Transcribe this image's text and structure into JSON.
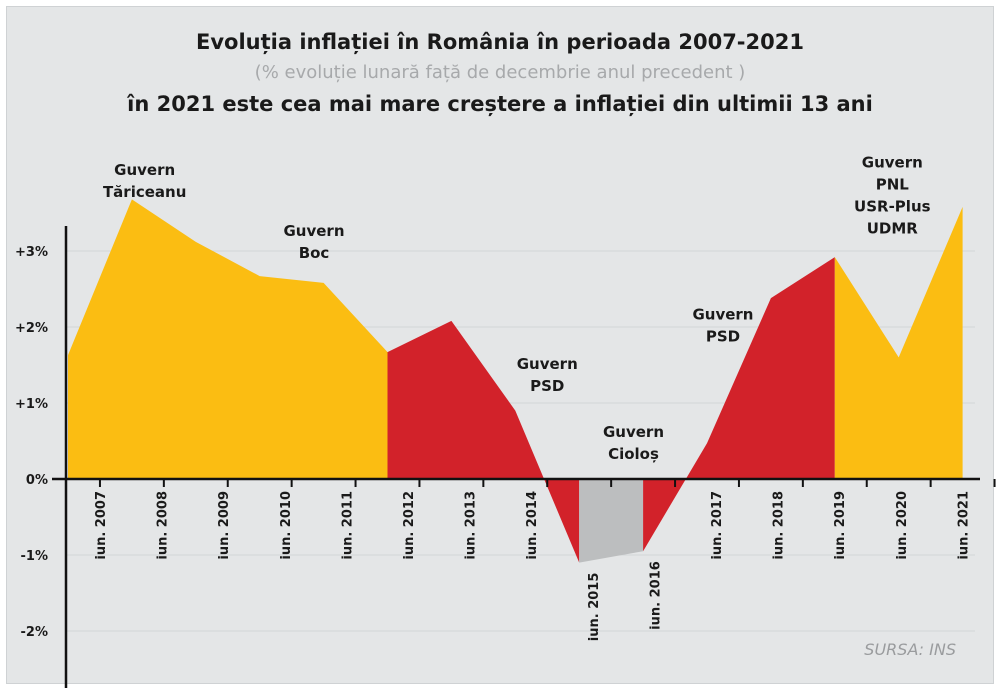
{
  "title": "Evoluția inflației în România în perioada 2007-2021",
  "subtitle": "(% evoluție lunară față de decembrie anul precedent )",
  "headline": "în 2021 este cea mai mare creștere a inflației din ultimii 13 ani",
  "source": "SURSA: INS",
  "chart_data": {
    "type": "area",
    "title": "Evoluția inflației în România în perioada 2007-2021",
    "subtitle": "(% evoluție lunară față de decembrie anul precedent )",
    "categories": [
      "iun. 2007",
      "iun. 2008",
      "iun. 2009",
      "iun. 2010",
      "iun. 2011",
      "iun. 2012",
      "iun. 2013",
      "iun. 2014",
      "iun. 2015",
      "iun. 2016",
      "iun. 2017",
      "iun. 2018",
      "iun. 2019",
      "iun. 2020",
      "iun. 2021"
    ],
    "values": [
      1.63,
      3.68,
      3.12,
      2.67,
      2.58,
      1.67,
      2.08,
      0.9,
      -1.1,
      -0.95,
      0.47,
      2.38,
      2.92,
      1.6,
      3.58
    ],
    "unit": "%",
    "ylim": [
      -2,
      3.5
    ],
    "yticks": [
      {
        "v": 3,
        "label": "+3%"
      },
      {
        "v": 2,
        "label": "+2%"
      },
      {
        "v": 1,
        "label": "+1%"
      },
      {
        "v": 0,
        "label": "0%"
      },
      {
        "v": -1,
        "label": "-1%"
      },
      {
        "v": -2,
        "label": "-2%"
      }
    ],
    "grid": true,
    "segments": [
      {
        "from": 0,
        "to": 5,
        "color": "#fbbd12"
      },
      {
        "from": 5,
        "to": 8,
        "color": "#d2222a"
      },
      {
        "from": 8,
        "to": 9,
        "color": "#bcbebf"
      },
      {
        "from": 9,
        "to": 12,
        "color": "#d2222a"
      },
      {
        "from": 12,
        "to": 14,
        "color": "#fbbd12"
      }
    ],
    "annotations": [
      {
        "lines": [
          "Guvern",
          "Tăriceanu"
        ],
        "at": 1.2,
        "value": 4.0
      },
      {
        "lines": [
          "Guvern",
          "Boc"
        ],
        "at": 3.85,
        "value": 3.2
      },
      {
        "lines": [
          "Guvern",
          "PSD"
        ],
        "at": 7.5,
        "value": 1.45
      },
      {
        "lines": [
          "Guvern",
          "Cioloș"
        ],
        "at": 8.85,
        "value": 0.55
      },
      {
        "lines": [
          "Guvern",
          "PSD"
        ],
        "at": 10.25,
        "value": 2.1
      },
      {
        "lines": [
          "Guvern",
          "PNL",
          "USR-Plus",
          "UDMR"
        ],
        "at": 12.9,
        "value": 4.1
      }
    ]
  }
}
